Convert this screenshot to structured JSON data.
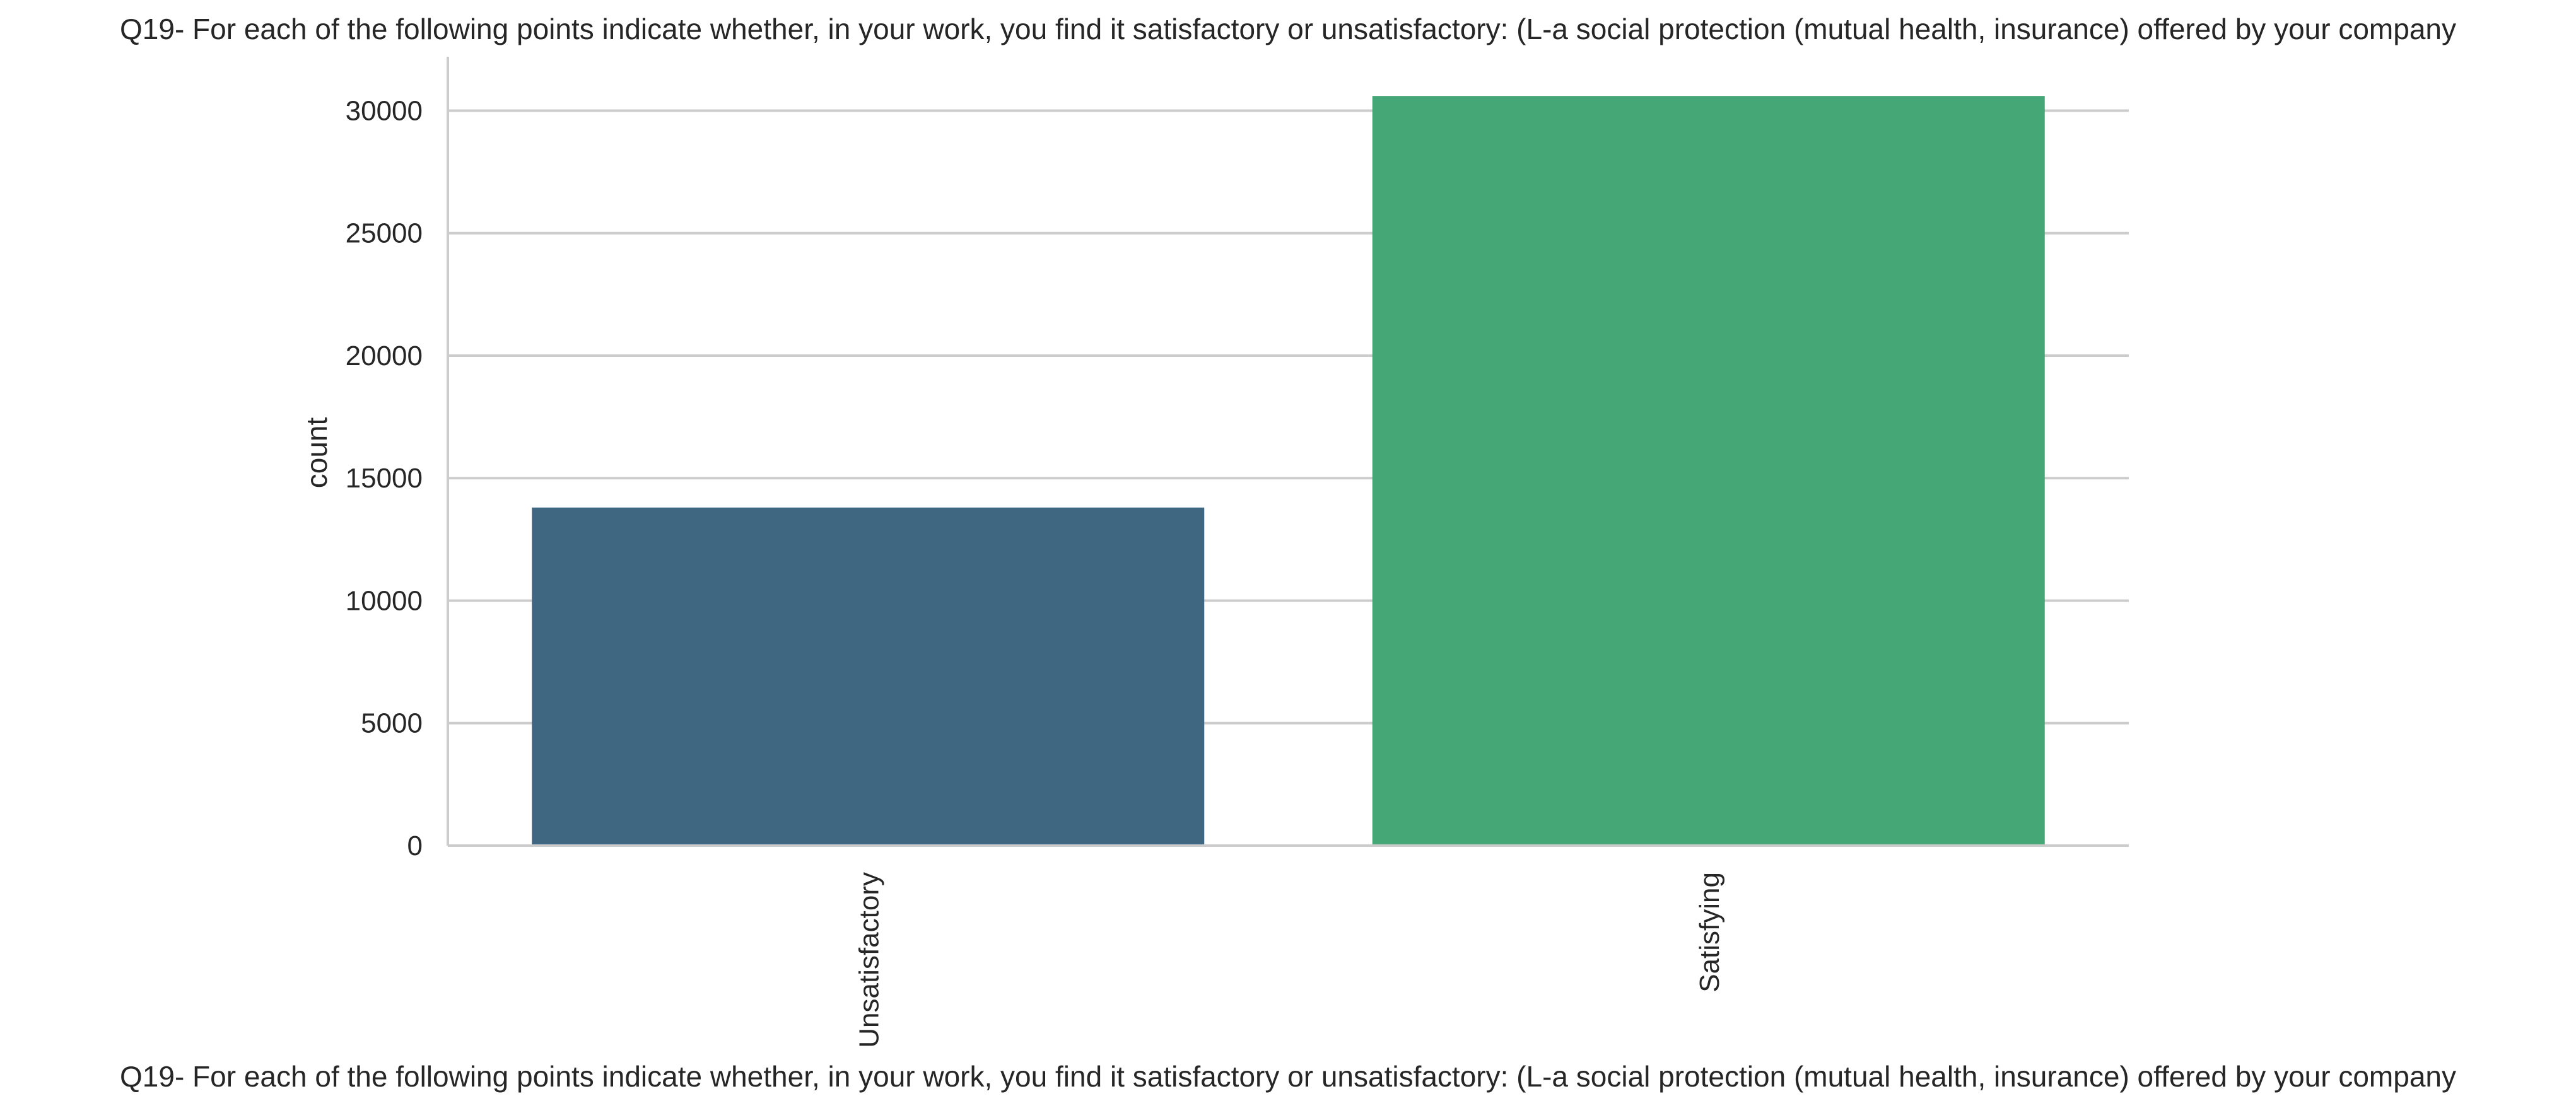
{
  "chart_data": {
    "type": "bar",
    "title": "Q19- For each of the following points indicate whether, in your work, you find it satisfactory or unsatisfactory: (L-a social protection (mutual health, insurance) offered by your company",
    "xlabel": "Q19- For each of the following points indicate whether, in your work, you find it satisfactory or unsatisfactory: (L-a social protection (mutual health, insurance) offered by your company",
    "ylabel": "count",
    "categories": [
      "Unsatisfactory",
      "Satisfying"
    ],
    "values": [
      13800,
      30600
    ],
    "colors": [
      "#3f6782",
      "#45a776"
    ],
    "ylim": [
      0,
      32200
    ],
    "yticks": [
      0,
      5000,
      10000,
      15000,
      20000,
      25000,
      30000
    ],
    "ytick_labels": [
      "0",
      "5000",
      "10000",
      "15000",
      "20000",
      "25000",
      "30000"
    ],
    "grid": "horizontal",
    "legend": "none",
    "xtick_rotation": -90
  }
}
